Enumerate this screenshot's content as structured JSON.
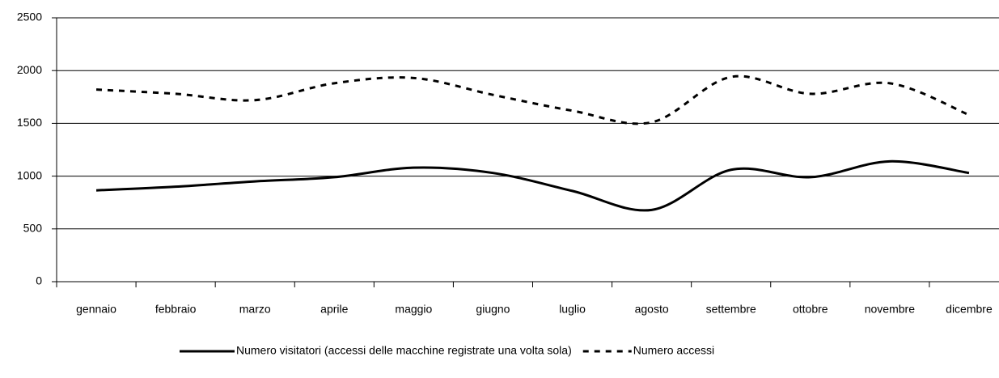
{
  "chart_data": {
    "type": "line",
    "categories": [
      "gennaio",
      "febbraio",
      "marzo",
      "aprile",
      "maggio",
      "giugno",
      "luglio",
      "agosto",
      "settembre",
      "ottobre",
      "novembre",
      "dicembre"
    ],
    "series": [
      {
        "name": "Numero visitatori (accessi delle macchine registrate una volta sola)",
        "color": "#000000",
        "dash": false,
        "values": [
          865,
          900,
          950,
          990,
          1080,
          1030,
          860,
          680,
          1060,
          990,
          1140,
          1030
        ]
      },
      {
        "name": "Numero accessi",
        "color": "#000000",
        "dash": true,
        "values": [
          1820,
          1780,
          1720,
          1880,
          1930,
          1770,
          1620,
          1510,
          1940,
          1780,
          1880,
          1580
        ]
      }
    ],
    "ylim": [
      0,
      2500
    ],
    "yticks": [
      0,
      500,
      1000,
      1500,
      2000,
      2500
    ],
    "grid": true,
    "legend": "bottom"
  }
}
